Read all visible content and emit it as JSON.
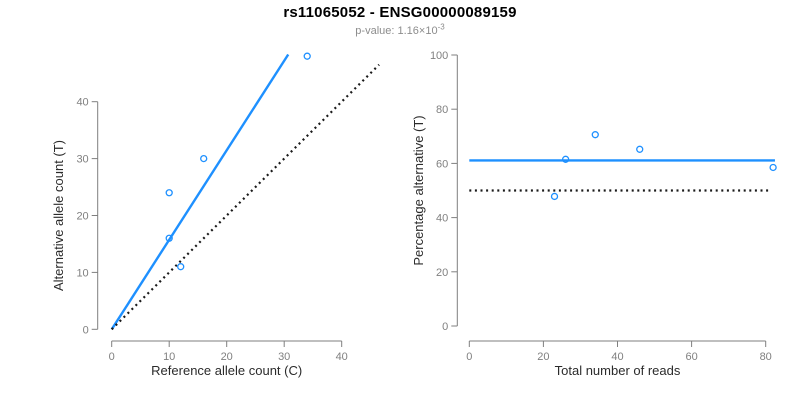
{
  "header": {
    "title": "rs11065052 - ENSG00000089159",
    "subtitle_base": "p-value: 1.16×10",
    "subtitle_exponent": "-3"
  },
  "colors": {
    "accent_blue": "#1E90FF",
    "dotted_black": "#1a1a1a",
    "axis_gray": "#7f7f7f",
    "tick_label_gray": "#808080",
    "axis_title_color": "#2b2b2b",
    "subtitle_gray": "#8c8c8c"
  },
  "chart_data": [
    {
      "type": "scatter",
      "title": "",
      "xlabel": "Reference allele count (C)",
      "ylabel": "Alternative allele count (T)",
      "xticks": [
        0,
        10,
        20,
        30,
        40
      ],
      "yticks": [
        0,
        10,
        20,
        30,
        40
      ],
      "xlim": [
        0,
        46.5
      ],
      "ylim": [
        0,
        48.5
      ],
      "grid": false,
      "legend": false,
      "points": [
        {
          "x": 10,
          "y": 24
        },
        {
          "x": 10,
          "y": 16
        },
        {
          "x": 12,
          "y": 11
        },
        {
          "x": 16,
          "y": 30
        },
        {
          "x": 34,
          "y": 48
        }
      ],
      "lines": [
        {
          "name": "fit-line",
          "style": "solid",
          "color_key": "accent_blue",
          "x1": 0,
          "y1": 0,
          "x2": 30.7,
          "y2": 48.3
        },
        {
          "name": "identity-line",
          "style": "dotted",
          "color_key": "dotted_black",
          "x1": 0,
          "y1": 0,
          "x2": 46.5,
          "y2": 46.5
        }
      ]
    },
    {
      "type": "scatter",
      "title": "",
      "xlabel": "Total number of reads",
      "ylabel": "Percentage alternative (T)",
      "xticks": [
        0,
        20,
        40,
        60,
        80
      ],
      "yticks": [
        0,
        20,
        40,
        60,
        80,
        100
      ],
      "xlim": [
        0,
        82.5
      ],
      "ylim": [
        0,
        100
      ],
      "grid": false,
      "legend": false,
      "points": [
        {
          "x": 23,
          "y": 47.8
        },
        {
          "x": 26,
          "y": 61.5
        },
        {
          "x": 34,
          "y": 70.6
        },
        {
          "x": 46,
          "y": 65.2
        },
        {
          "x": 82,
          "y": 58.5
        }
      ],
      "lines": [
        {
          "name": "mean-line",
          "style": "solid",
          "color_key": "accent_blue",
          "x1": 0,
          "y1": 61.1,
          "x2": 82.5,
          "y2": 61.1
        },
        {
          "name": "expected-line",
          "style": "dotted",
          "color_key": "dotted_black",
          "x1": 0,
          "y1": 50,
          "x2": 80.7,
          "y2": 50
        }
      ]
    }
  ]
}
